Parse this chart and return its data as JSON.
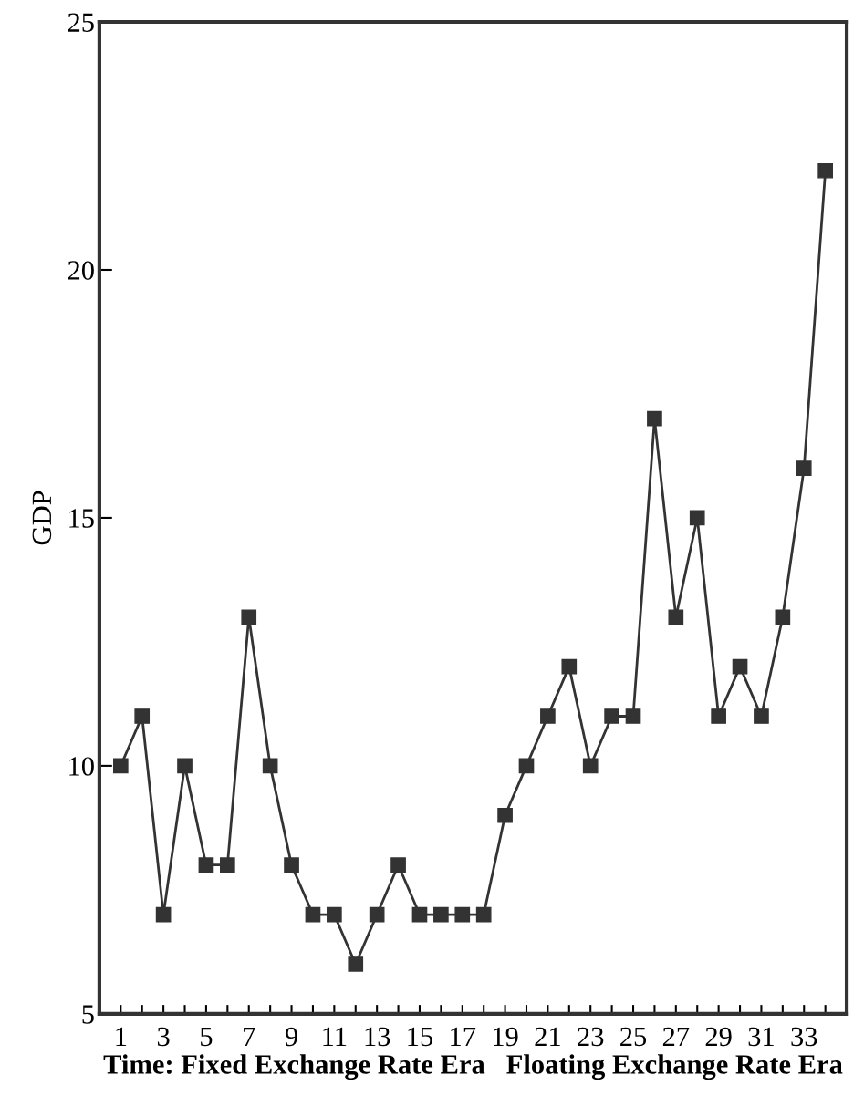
{
  "chart_data": {
    "type": "line",
    "x": [
      1,
      2,
      3,
      4,
      5,
      6,
      7,
      8,
      9,
      10,
      11,
      12,
      13,
      14,
      15,
      16,
      17,
      18,
      19,
      20,
      21,
      22,
      23,
      24,
      25,
      26,
      27,
      28,
      29,
      30,
      31,
      32,
      33,
      34
    ],
    "series": [
      {
        "color": "#333333",
        "values": [
          10,
          11,
          7,
          10,
          8,
          8,
          13,
          10,
          8,
          7,
          7,
          6,
          7,
          8,
          7,
          7,
          7,
          7,
          9,
          10,
          11,
          12,
          10,
          11,
          11,
          17,
          13,
          15,
          11,
          12,
          11,
          13,
          16,
          22
        ]
      }
    ],
    "xlabel": "Time: Fixed Exchange Rate Era   Floating Exchange Rate Era",
    "ylabel": "GDP",
    "xlim": [
      0,
      35
    ],
    "xticks": [
      1,
      {
        "value": 2,
        "label": null
      },
      3,
      {
        "value": 4,
        "label": null
      },
      5,
      {
        "value": 6,
        "label": null
      },
      7,
      {
        "value": 8,
        "label": null
      },
      9,
      {
        "value": 10,
        "label": null
      },
      11,
      {
        "value": 12,
        "label": null
      },
      13,
      {
        "value": 14,
        "label": null
      },
      15,
      {
        "value": 16,
        "label": null
      },
      17,
      {
        "value": 18,
        "label": null
      },
      19,
      {
        "value": 20,
        "label": null
      },
      21,
      {
        "value": 22,
        "label": null
      },
      23,
      {
        "value": 24,
        "label": null
      },
      25,
      {
        "value": 26,
        "label": null
      },
      27,
      {
        "value": 28,
        "label": null
      },
      29,
      {
        "value": 30,
        "label": null
      },
      31,
      {
        "value": 32,
        "label": null
      },
      33,
      {
        "value": 34,
        "label": null
      }
    ],
    "ylim": [
      5,
      25
    ],
    "yticks": [
      5,
      10,
      15,
      20,
      25
    ],
    "grid": false,
    "legend": false,
    "marker": "square",
    "line_style": "solid"
  }
}
